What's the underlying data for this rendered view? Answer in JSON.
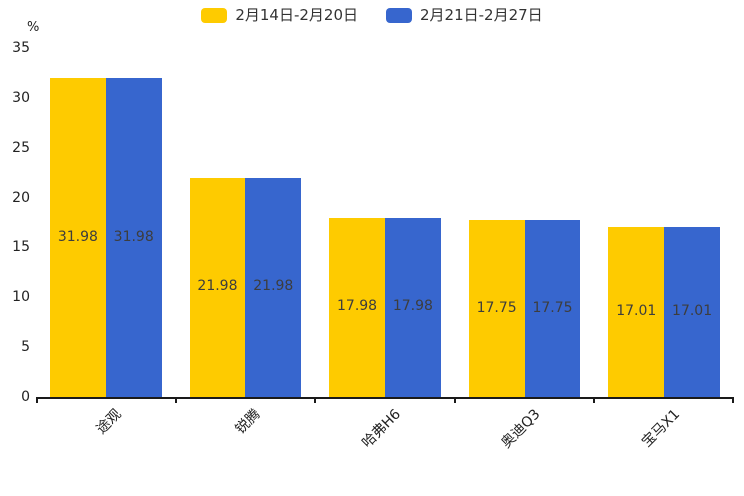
{
  "chart": {
    "accent_yellow": "#FECB00",
    "accent_blue": "#3766CE",
    "axis_color": "#1a1a1a",
    "value_label_color": "#3d3d3d"
  },
  "chart_data": {
    "type": "bar",
    "title": "",
    "ylabel": "%",
    "xlabel": "",
    "ylim": [
      0,
      35
    ],
    "yticks": [
      0,
      5,
      10,
      15,
      20,
      25,
      30,
      35
    ],
    "grid": false,
    "legend_position": "top",
    "value_labels_shown": true,
    "categories": [
      "途观",
      "锐腾",
      "哈弗H6",
      "奥迪Q3",
      "宝马X1"
    ],
    "series": [
      {
        "name": "2月14日-2月20日",
        "color": "#FECB00",
        "values": [
          31.98,
          21.98,
          17.98,
          17.75,
          17.01
        ]
      },
      {
        "name": "2月21日-2月27日",
        "color": "#3766CE",
        "values": [
          31.98,
          21.98,
          17.98,
          17.75,
          17.01
        ]
      }
    ]
  }
}
